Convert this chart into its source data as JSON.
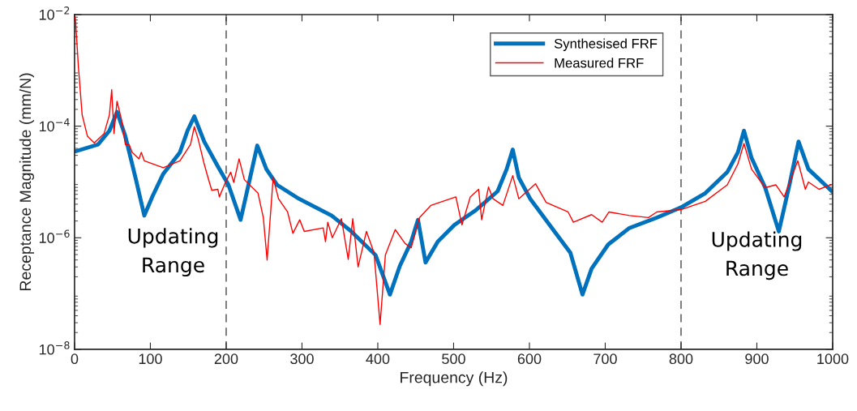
{
  "chart_data": {
    "type": "line",
    "xlabel": "Frequency (Hz)",
    "ylabel": "Receptance Magnitude (mm/N)",
    "xlim": [
      0,
      1000
    ],
    "xticks": [
      0,
      100,
      200,
      300,
      400,
      500,
      600,
      700,
      800,
      900,
      1000
    ],
    "ylim": [
      1e-08,
      0.01
    ],
    "log": "y",
    "yticks": [
      {
        "value": 1e-08,
        "label": "10$^{−8}$"
      },
      {
        "value": 1e-06,
        "label": "10$^{−6}$"
      },
      {
        "value": 0.0001,
        "label": "10$^{−4}$"
      },
      {
        "value": 0.01,
        "label": "10$^{−2}$"
      }
    ],
    "grid": false,
    "legend": "top right",
    "ref_lines": [
      {
        "axis": "x",
        "value": 200,
        "color": "#666666",
        "line_style": "dashed"
      },
      {
        "axis": "x",
        "value": 800,
        "color": "#666666",
        "line_style": "dashed"
      }
    ],
    "annotations": [
      "Updating\nRange",
      "Updating\nRange"
    ],
    "series": [
      {
        "name": "Synthesised FRF",
        "color": "#0072bd",
        "x": [
          0,
          31,
          46,
          56,
          67,
          81,
          92,
          103,
          117,
          139,
          149,
          158,
          171,
          189,
          203,
          219,
          231,
          241,
          253,
          267,
          296,
          339,
          365,
          397,
          416,
          429,
          444,
          453,
          463,
          479,
          501,
          529,
          558,
          570,
          578,
          586,
          601,
          633,
          654,
          670,
          682,
          704,
          732,
          768,
          800,
          832,
          861,
          875,
          883,
          893,
          911,
          929,
          943,
          955,
          968,
          1000
        ],
        "values": [
          3.5e-05,
          4.7e-05,
          8.3e-05,
          0.00018,
          6.6e-05,
          1.1e-05,
          2.5e-06,
          5.6e-06,
          1.4e-05,
          3.4e-05,
          8.3e-05,
          0.00015,
          5.3e-05,
          1.9e-05,
          8.9e-06,
          2.1e-06,
          1.1e-05,
          4.5e-05,
          1.7e-05,
          8.9e-06,
          5e-06,
          2.5e-06,
          1.3e-06,
          4.9e-07,
          9.6e-08,
          3.1e-07,
          8.5e-07,
          2.1e-06,
          3.6e-07,
          8.5e-07,
          1.7e-06,
          3.1e-06,
          6.8e-06,
          1.7e-05,
          3.8e-05,
          1.2e-05,
          5e-06,
          1.3e-06,
          5.4e-07,
          9.6e-08,
          2.8e-07,
          7.6e-07,
          1.5e-06,
          2.3e-06,
          3.5e-06,
          6.3e-06,
          1.5e-05,
          3.4e-05,
          8.3e-05,
          2.7e-05,
          7.9e-06,
          1.3e-06,
          8.9e-06,
          5.3e-05,
          1.7e-05,
          6.6e-06
        ]
      },
      {
        "name": "Measured FRF",
        "color": "#ff0000",
        "x": [
          1,
          5,
          10,
          17,
          26,
          39,
          46,
          49,
          52,
          56,
          62,
          67,
          72,
          76,
          85,
          88,
          92,
          117,
          139,
          153,
          158,
          163,
          171,
          176,
          181,
          189,
          191,
          199,
          206,
          210,
          217,
          224,
          242,
          249,
          254,
          262,
          269,
          281,
          288,
          297,
          303,
          328,
          331,
          334,
          340,
          352,
          361,
          367,
          374,
          385,
          395,
          403,
          410,
          423,
          436,
          444,
          455,
          470,
          503,
          511,
          522,
          533,
          537,
          546,
          552,
          565,
          578,
          586,
          608,
          622,
          651,
          658,
          682,
          696,
          705,
          732,
          757,
          768,
          800,
          832,
          861,
          875,
          883,
          893,
          911,
          925,
          936,
          954,
          964,
          968,
          982,
          998
        ],
        "values": [
          0.009,
          0.0012,
          0.00016,
          6.6e-05,
          5e-05,
          7.4e-05,
          0.00016,
          0.00045,
          7.4e-05,
          0.00028,
          0.00013,
          4.7e-05,
          4.7e-05,
          3.4e-05,
          2.6e-05,
          3.4e-05,
          2.4e-05,
          1.8e-05,
          2.4e-05,
          4.7e-05,
          9.8e-05,
          5.9e-05,
          2.1e-05,
          1.2e-05,
          7.1e-06,
          7.4e-06,
          5.4e-06,
          9.8e-06,
          1.5e-05,
          9.8e-06,
          2.6e-05,
          1.1e-05,
          6.3e-06,
          2.3e-06,
          4e-07,
          1.2e-05,
          5e-06,
          2.9e-06,
          1.2e-06,
          2.1e-06,
          1.3e-06,
          1.5e-06,
          8.5e-07,
          1.9e-06,
          1e-06,
          2.2e-06,
          4.1e-07,
          2.2e-06,
          3e-07,
          1.3e-06,
          5.4e-07,
          2.8e-08,
          4.9e-07,
          1.4e-06,
          7.9e-07,
          6.6e-07,
          2.3e-06,
          3.8e-06,
          5.4e-06,
          1.7e-06,
          5.4e-06,
          7.4e-06,
          2.1e-06,
          8.1e-06,
          5e-06,
          3.8e-06,
          1.3e-05,
          5e-06,
          9.3e-06,
          4.3e-06,
          2.9e-06,
          1.9e-06,
          2.6e-06,
          1.9e-06,
          2.9e-06,
          2.5e-06,
          2.3e-06,
          2.9e-06,
          3.2e-06,
          4.5e-06,
          8.9e-06,
          2.1e-05,
          4.9e-05,
          1.7e-05,
          7.9e-06,
          8.9e-06,
          5.4e-06,
          2.4e-05,
          7.4e-06,
          1e-05,
          7.4e-06,
          8.9e-06
        ]
      }
    ]
  }
}
